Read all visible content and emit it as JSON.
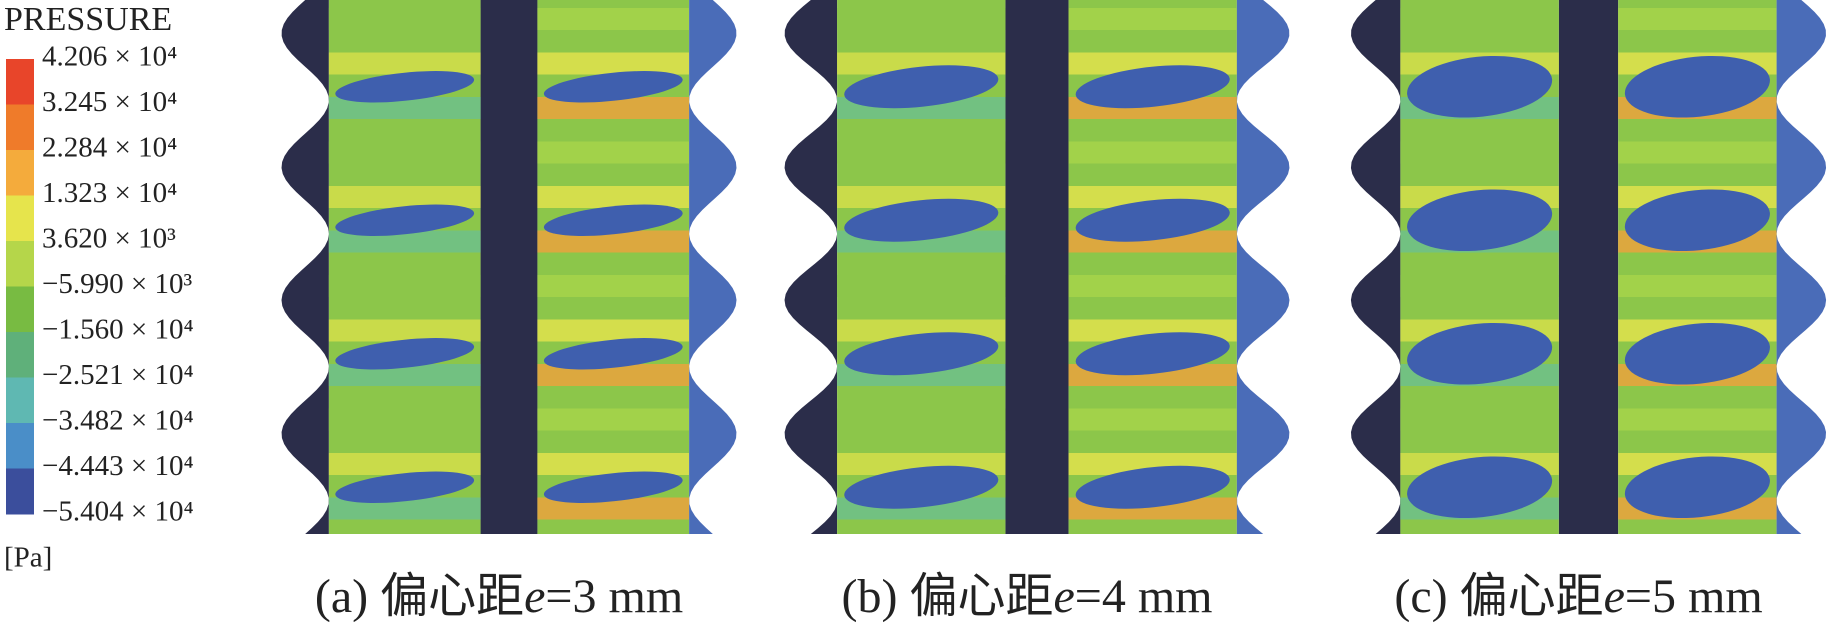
{
  "legend": {
    "title": "PRESSURE",
    "labels": [
      "4.206 × 10⁴",
      "3.245 × 10⁴",
      "2.284 × 10⁴",
      "1.323 × 10⁴",
      "3.620 × 10³",
      "−5.990 × 10³",
      "−1.560 × 10⁴",
      "−2.521 × 10⁴",
      "−3.482 × 10⁴",
      "−4.443 × 10⁴",
      "−5.404 × 10⁴"
    ],
    "unit": "[Pa]"
  },
  "panels": [
    {
      "caption": {
        "prefix": "(a) 偏心距",
        "variable": "e",
        "suffix": "=3 mm"
      }
    },
    {
      "caption": {
        "prefix": "(b) 偏心距",
        "variable": "e",
        "suffix": "=4 mm"
      }
    },
    {
      "caption": {
        "prefix": "(c) 偏心距",
        "variable": "e",
        "suffix": "=5 mm"
      }
    }
  ]
}
